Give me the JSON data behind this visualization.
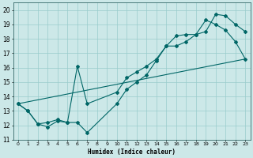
{
  "xlabel": "Humidex (Indice chaleur)",
  "bg_color": "#cce8e8",
  "grid_color": "#99cccc",
  "line_color": "#006666",
  "xlim": [
    -0.5,
    23.5
  ],
  "ylim": [
    11,
    20.5
  ],
  "xticks": [
    0,
    1,
    2,
    3,
    4,
    5,
    6,
    7,
    8,
    9,
    10,
    11,
    12,
    13,
    14,
    15,
    16,
    17,
    18,
    19,
    20,
    21,
    22,
    23
  ],
  "yticks": [
    11,
    12,
    13,
    14,
    15,
    16,
    17,
    18,
    19,
    20
  ],
  "line1_x": [
    0,
    1,
    2,
    3,
    4,
    5,
    6,
    7,
    10,
    11,
    12,
    13,
    14,
    15,
    16,
    17,
    18,
    19,
    20,
    21,
    22,
    23
  ],
  "line1_y": [
    13.5,
    13.0,
    12.1,
    11.9,
    12.3,
    12.2,
    12.2,
    11.5,
    13.5,
    14.5,
    15.0,
    15.5,
    16.5,
    17.5,
    17.5,
    17.8,
    18.3,
    18.5,
    19.7,
    19.6,
    19.0,
    18.5
  ],
  "line2_x": [
    0,
    1,
    2,
    3,
    4,
    5,
    6,
    7,
    10,
    11,
    12,
    13,
    14,
    15,
    16,
    17,
    18,
    19,
    20,
    21,
    22,
    23
  ],
  "line2_y": [
    13.5,
    13.0,
    12.1,
    12.2,
    12.4,
    12.2,
    16.1,
    13.5,
    14.3,
    15.3,
    15.7,
    16.1,
    16.6,
    17.5,
    18.2,
    18.3,
    18.3,
    19.3,
    19.0,
    18.6,
    17.8,
    16.6
  ],
  "line3_x": [
    0,
    23
  ],
  "line3_y": [
    13.5,
    16.6
  ]
}
